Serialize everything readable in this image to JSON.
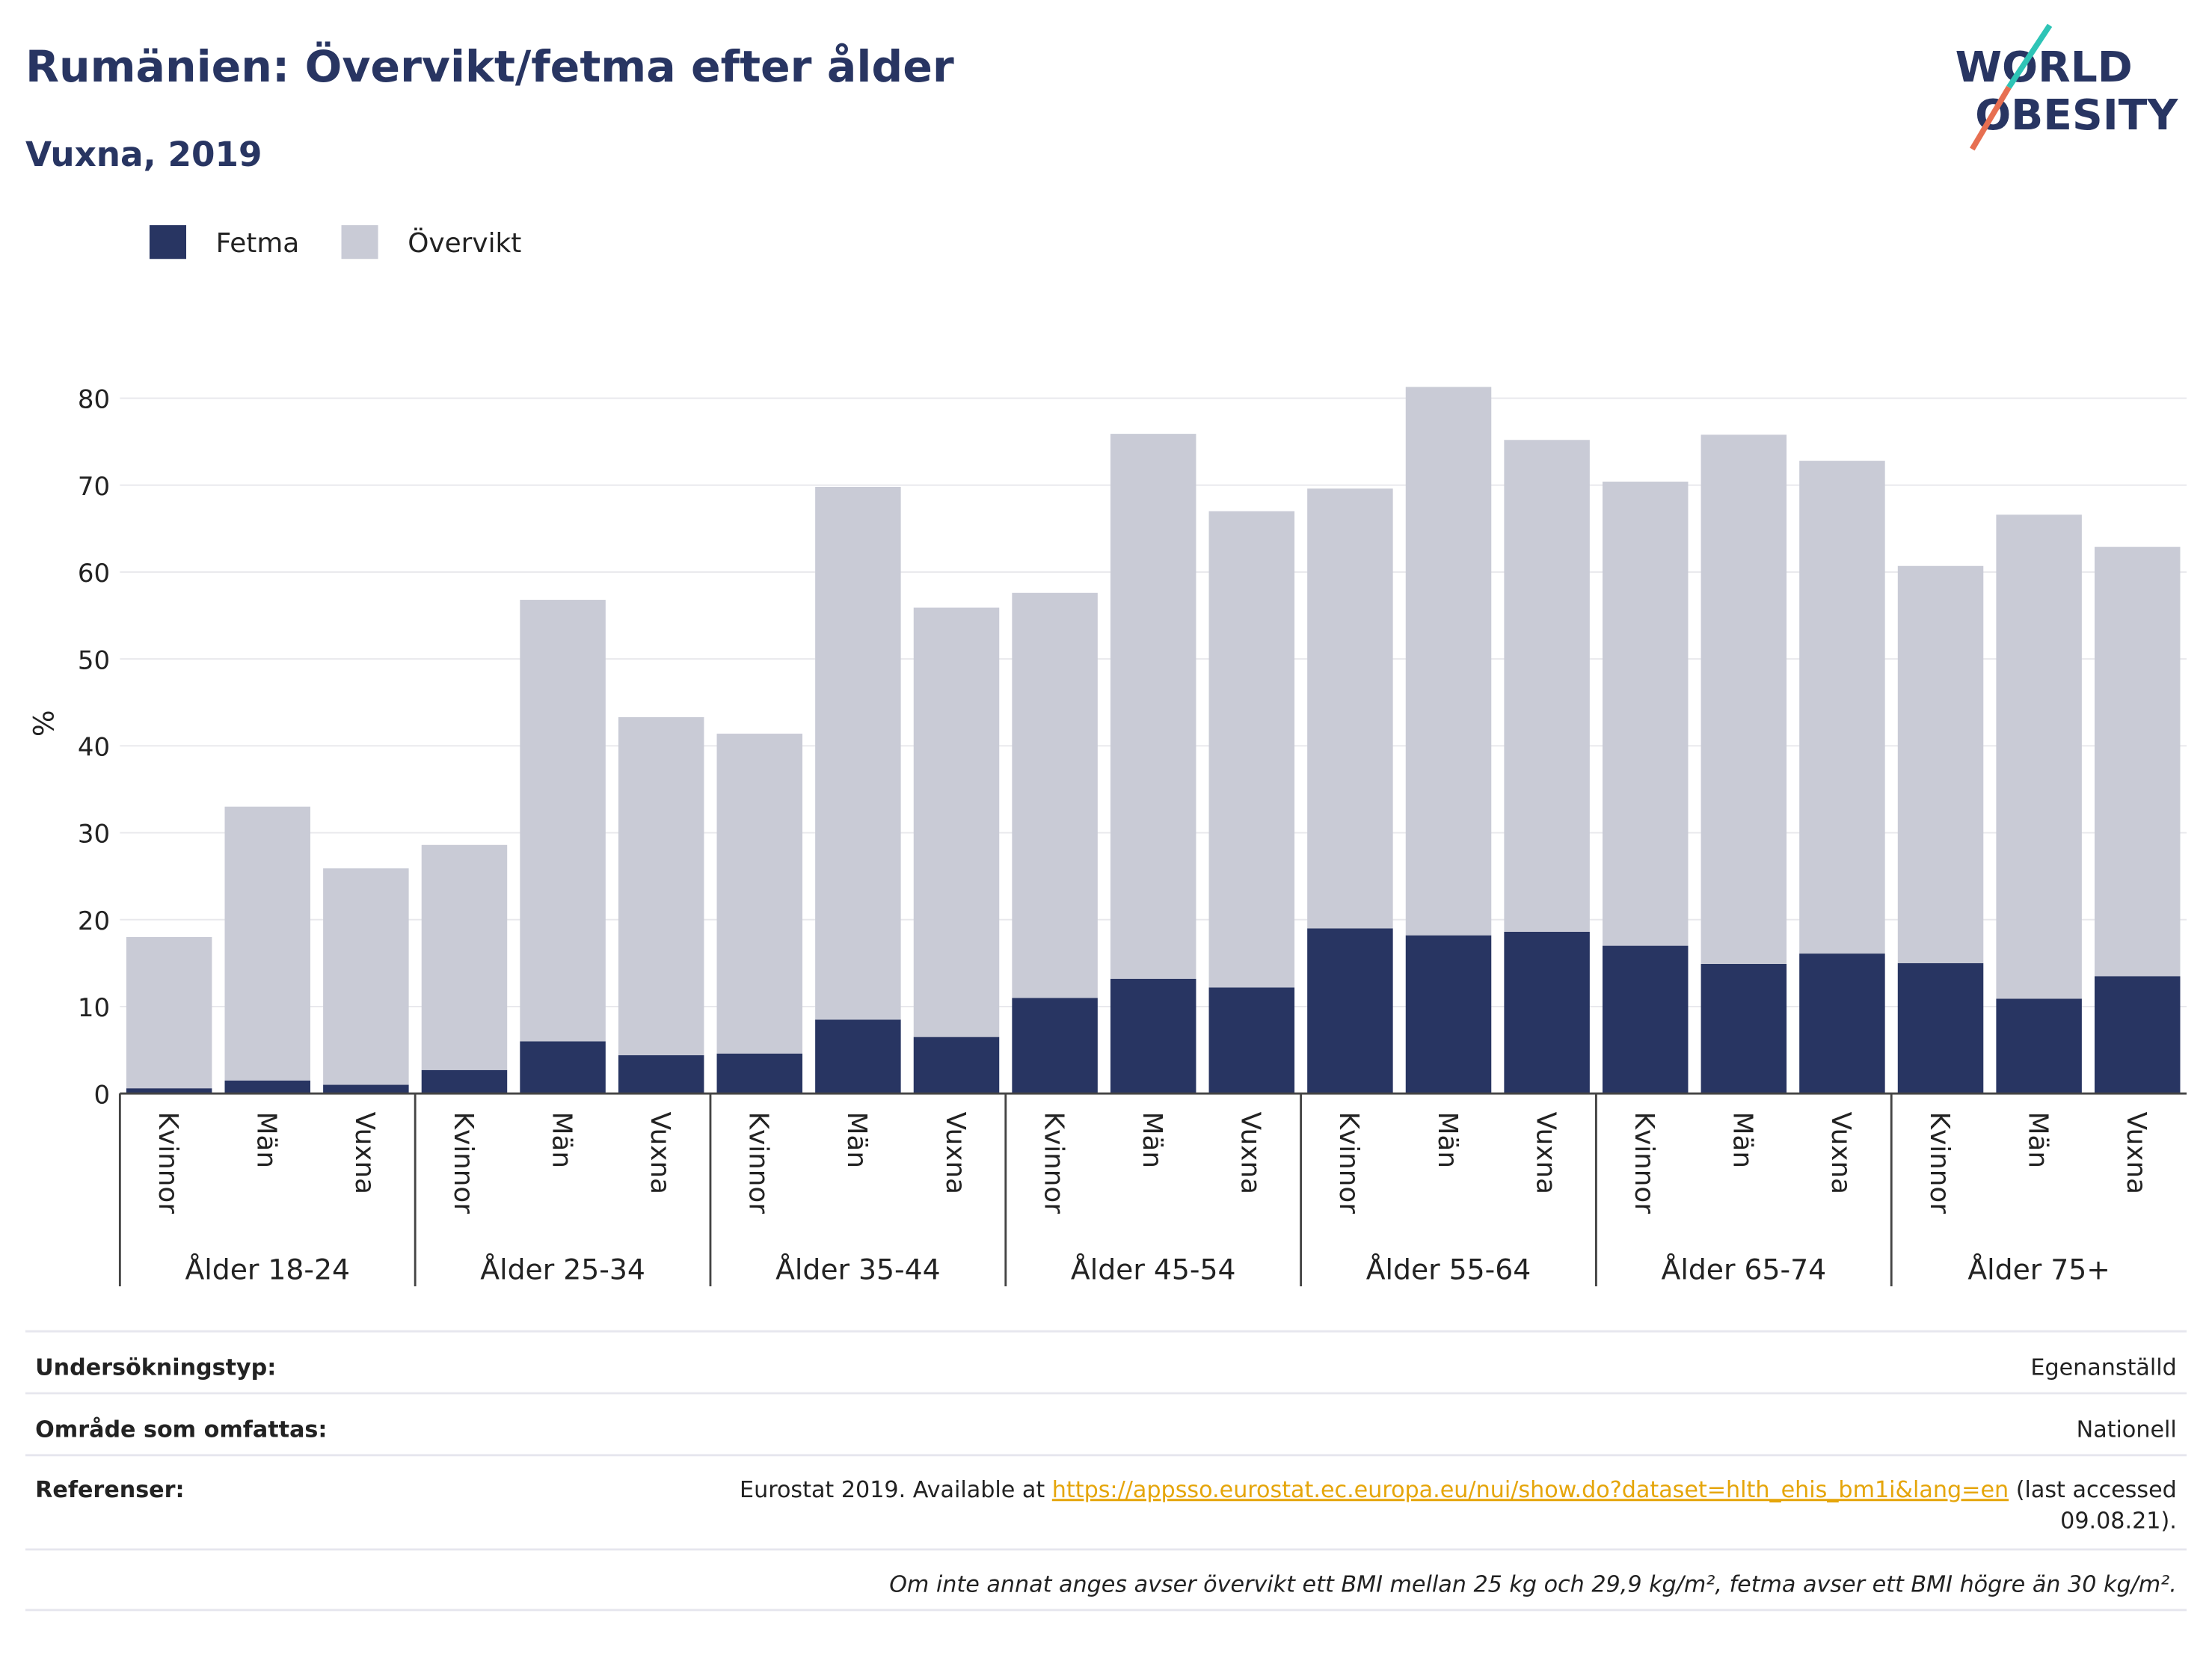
{
  "chart_data": {
    "type": "stacked_bar",
    "title": "Rumänien: Övervikt/fetma efter ålder",
    "subtitle": "Vuxna, 2019",
    "y_label": "%",
    "categories": [
      "Kvinnor",
      "Män",
      "Vuxna",
      "Kvinnor",
      "Män",
      "Vuxna",
      "Kvinnor",
      "Män",
      "Vuxna",
      "Kvinnor",
      "Män",
      "Vuxna",
      "Kvinnor",
      "Män",
      "Vuxna",
      "Kvinnor",
      "Män",
      "Vuxna",
      "Kvinnor",
      "Män",
      "Vuxna"
    ],
    "groups": [
      "Ålder 18-24",
      "Ålder 25-34",
      "Ålder 35-44",
      "Ålder 45-54",
      "Ålder 55-64",
      "Ålder 65-74",
      "Ålder 75+"
    ],
    "series": [
      {
        "name": "Fetma",
        "color": "#283562",
        "values": [
          0.6,
          1.5,
          1.0,
          2.7,
          6.0,
          4.4,
          4.6,
          8.5,
          6.5,
          11.0,
          13.2,
          12.2,
          19.0,
          18.2,
          18.6,
          17.0,
          14.9,
          16.1,
          15.0,
          10.9,
          13.5
        ]
      },
      {
        "name": "Övervikt",
        "color": "#c9cbd6",
        "values": [
          17.4,
          31.5,
          24.9,
          25.9,
          50.8,
          38.9,
          36.8,
          61.3,
          49.4,
          46.6,
          62.7,
          54.8,
          50.6,
          63.1,
          56.6,
          53.4,
          60.9,
          56.7,
          45.7,
          55.7,
          49.4
        ]
      }
    ],
    "ylim": [
      0,
      82
    ],
    "yticks": [
      0,
      10,
      20,
      30,
      40,
      50,
      60,
      70,
      80
    ],
    "grid": true,
    "legend": "top-left"
  },
  "logo": {
    "line1": "WORLD",
    "line2": "OBESITY"
  },
  "footer": {
    "rows": [
      {
        "label": "Undersökningstyp:",
        "value": "Egenanställd"
      },
      {
        "label": "Område som omfattas:",
        "value": "Nationell"
      }
    ],
    "reference": {
      "label": "Referenser:",
      "prefix": "Eurostat 2019. Available at",
      "link": "https://appsso.eurostat.ec.europa.eu/nui/show.do?dataset=hlth_ehis_bm1i&lang=en",
      "suffix_1": "(last accessed",
      "suffix_2": "09.08.21)."
    },
    "note": "Om inte annat anges avser övervikt ett BMI mellan 25 kg och 29,9 kg/m², fetma avser ett BMI högre än 30 kg/m²."
  }
}
